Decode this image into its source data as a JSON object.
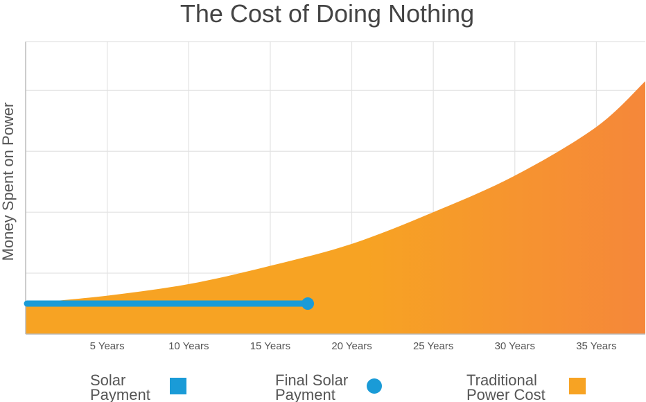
{
  "chart_data": {
    "type": "area",
    "title": "The Cost of Doing Nothing",
    "xlabel": "",
    "ylabel": "Money Spent on Power",
    "xlim": [
      0,
      38
    ],
    "ylim": [
      0,
      4.8
    ],
    "x_ticks": [
      5,
      10,
      15,
      20,
      25,
      30,
      35
    ],
    "x_tick_labels": [
      "5 Years",
      "10 Years",
      "15 Years",
      "20 Years",
      "25 Years",
      "30 Years",
      "35 Years"
    ],
    "y_gridlines": [
      1,
      2,
      3,
      4
    ],
    "grid": true,
    "legend_position": "bottom",
    "series": [
      {
        "name": "Traditional Power Cost",
        "type": "area",
        "x": [
          0,
          5,
          10,
          15,
          20,
          25,
          30,
          35,
          38
        ],
        "values": [
          0.5,
          0.63,
          0.82,
          1.12,
          1.48,
          2.0,
          2.6,
          3.4,
          4.15
        ]
      },
      {
        "name": "Solar Payment",
        "type": "line",
        "x": [
          0,
          17.3
        ],
        "values": [
          0.5,
          0.5
        ]
      },
      {
        "name": "Final Solar Payment",
        "type": "point",
        "x": [
          17.3
        ],
        "values": [
          0.5
        ]
      }
    ],
    "legend": [
      {
        "key": "solar",
        "lines": [
          "Solar",
          "Payment"
        ],
        "shape": "square",
        "color": "#1a9bd7"
      },
      {
        "key": "final",
        "lines": [
          "Final Solar",
          "Payment"
        ],
        "shape": "circle",
        "color": "#1a9bd7"
      },
      {
        "key": "traditional",
        "lines": [
          "Traditional",
          "Power Cost"
        ],
        "shape": "square",
        "color": "#f7a323"
      }
    ],
    "colors": {
      "area_start": "#f7a323",
      "area_end": "#f5873a",
      "solar": "#1a9bd7",
      "grid": "#e2e2e2",
      "axis": "#bbbbbb"
    }
  }
}
